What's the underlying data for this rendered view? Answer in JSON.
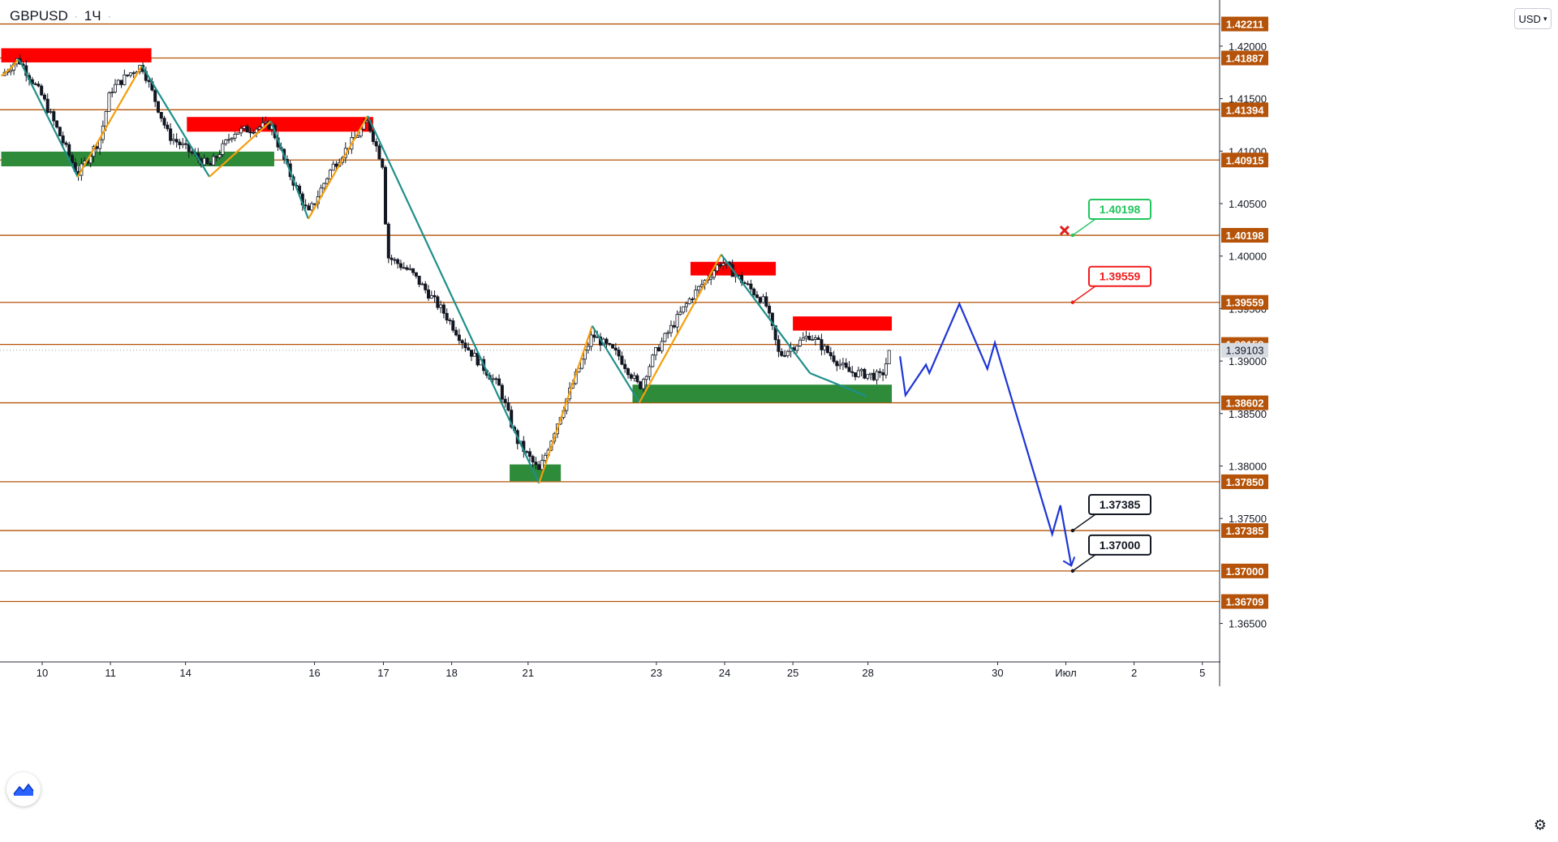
{
  "header": {
    "symbol": "GBPUSD",
    "interval": "1Ч",
    "currency": "USD"
  },
  "icons": {
    "logo": "tradingview-logo-icon",
    "settings": "gear-icon",
    "dropdown": "chevron-down-icon",
    "cancel_mark": "red-x-icon"
  },
  "colors": {
    "level_line": "#b45309",
    "price_label_bg": "#b45309",
    "resistance_zone": "#ff0000",
    "support_zone": "#2e8b3a",
    "down_leg": "#1e8f8a",
    "up_leg": "#f59e0b",
    "projection": "#1d35d6",
    "current_price_bg": "#d7dbe2",
    "candle": "#131722"
  },
  "chart_data": {
    "type": "candlestick",
    "symbol": "GBPUSD",
    "interval": "1Ч",
    "ylim": [
      1.3625,
      1.4235
    ],
    "grid": false,
    "y_ticks": [
      "1.42000",
      "1.41500",
      "1.41000",
      "1.40500",
      "1.40000",
      "1.39500",
      "1.39000",
      "1.38500",
      "1.38000",
      "1.37500",
      "1.36500"
    ],
    "x_ticks": [
      {
        "label": "10",
        "t": 0.0
      },
      {
        "label": "11",
        "t": 1.0
      },
      {
        "label": "14",
        "t": 2.1
      },
      {
        "label": "16",
        "t": 3.99
      },
      {
        "label": "17",
        "t": 5.0
      },
      {
        "label": "18",
        "t": 6.0
      },
      {
        "label": "21",
        "t": 7.12
      },
      {
        "label": "23",
        "t": 9.0
      },
      {
        "label": "24",
        "t": 10.0
      },
      {
        "label": "25",
        "t": 11.0
      },
      {
        "label": "28",
        "t": 12.1
      },
      {
        "label": "30",
        "t": 14.0
      },
      {
        "label": "Июл",
        "t": 15.0
      },
      {
        "label": "2",
        "t": 16.0
      },
      {
        "label": "5",
        "t": 17.0
      }
    ],
    "horizontal_levels": [
      "1.42211",
      "1.41887",
      "1.41394",
      "1.40915",
      "1.40198",
      "1.39559",
      "1.39158",
      "1.38602",
      "1.37850",
      "1.37385",
      "1.37000",
      "1.36709"
    ],
    "current_price": "1.39103",
    "resistance_zones": [
      {
        "t0": -0.6,
        "t1": 1.6,
        "top": 1.4198,
        "bottom": 1.41845
      },
      {
        "t0": 2.12,
        "t1": 4.85,
        "top": 1.41325,
        "bottom": 1.41185
      },
      {
        "t0": 9.5,
        "t1": 10.75,
        "top": 1.39945,
        "bottom": 1.39815
      },
      {
        "t0": 11.0,
        "t1": 12.45,
        "top": 1.39425,
        "bottom": 1.3929
      }
    ],
    "support_zones": [
      {
        "t0": -0.6,
        "t1": 3.4,
        "top": 1.40995,
        "bottom": 1.40855
      },
      {
        "t0": 8.65,
        "t1": 12.45,
        "top": 1.38775,
        "bottom": 1.38605
      },
      {
        "t0": 6.85,
        "t1": 7.6,
        "top": 1.38015,
        "bottom": 1.37855
      }
    ],
    "zigzag": [
      [
        -0.6,
        1.41715
      ],
      [
        -0.45,
        1.41795
      ],
      [
        -0.35,
        1.41875
      ],
      [
        -0.3,
        1.41825
      ],
      [
        0.52,
        1.40755
      ],
      [
        1.46,
        1.41815
      ],
      [
        2.45,
        1.40755
      ],
      [
        3.35,
        1.41285
      ],
      [
        3.9,
        1.40355
      ],
      [
        4.77,
        1.41335
      ],
      [
        7.28,
        1.37835
      ],
      [
        8.06,
        1.39335
      ],
      [
        8.75,
        1.38605
      ],
      [
        9.95,
        1.40015
      ],
      [
        11.25,
        1.38885
      ],
      [
        12.08,
        1.38665
      ]
    ],
    "projection": [
      [
        12.57,
        1.39045
      ],
      [
        12.65,
        1.38675
      ],
      [
        12.95,
        1.38965
      ],
      [
        13.0,
        1.38885
      ],
      [
        13.44,
        1.39545
      ],
      [
        13.85,
        1.38925
      ],
      [
        13.96,
        1.39175
      ],
      [
        14.8,
        1.3735
      ],
      [
        14.92,
        1.37625
      ],
      [
        15.08,
        1.3705
      ]
    ],
    "callouts": [
      {
        "label": "1.40198",
        "t": 15.1,
        "price": 1.40198,
        "color": "#22c55e",
        "cancelled": true
      },
      {
        "label": "1.39559",
        "t": 15.1,
        "price": 1.39559,
        "color": "#ef1d1d",
        "cancelled": false
      },
      {
        "label": "1.37385",
        "t": 15.1,
        "price": 1.37385,
        "color": "#131722",
        "cancelled": false
      },
      {
        "label": "1.37000",
        "t": 15.1,
        "price": 1.37,
        "color": "#131722",
        "cancelled": false
      }
    ],
    "price_anchors": [
      [
        -0.6,
        1.4172
      ],
      [
        -0.35,
        1.4188
      ],
      [
        0.0,
        1.4152
      ],
      [
        0.52,
        1.4078
      ],
      [
        0.85,
        1.4112
      ],
      [
        1.0,
        1.4158
      ],
      [
        1.3,
        1.4175
      ],
      [
        1.46,
        1.4182
      ],
      [
        1.85,
        1.4115
      ],
      [
        2.45,
        1.4085
      ],
      [
        2.8,
        1.4118
      ],
      [
        3.35,
        1.4125
      ],
      [
        3.6,
        1.4082
      ],
      [
        3.9,
        1.404
      ],
      [
        4.25,
        1.4085
      ],
      [
        4.77,
        1.4128
      ],
      [
        5.0,
        1.4085
      ],
      [
        5.05,
        1.4
      ],
      [
        5.4,
        1.3985
      ],
      [
        5.9,
        1.3945
      ],
      [
        6.2,
        1.3915
      ],
      [
        6.7,
        1.3875
      ],
      [
        6.95,
        1.3825
      ],
      [
        7.28,
        1.3795
      ],
      [
        7.6,
        1.385
      ],
      [
        8.06,
        1.3925
      ],
      [
        8.45,
        1.3905
      ],
      [
        8.75,
        1.3875
      ],
      [
        9.0,
        1.391
      ],
      [
        9.5,
        1.396
      ],
      [
        9.95,
        1.3995
      ],
      [
        10.6,
        1.3955
      ],
      [
        10.8,
        1.3905
      ],
      [
        11.25,
        1.3925
      ],
      [
        11.8,
        1.389
      ],
      [
        12.3,
        1.3885
      ],
      [
        12.45,
        1.3915
      ]
    ]
  }
}
